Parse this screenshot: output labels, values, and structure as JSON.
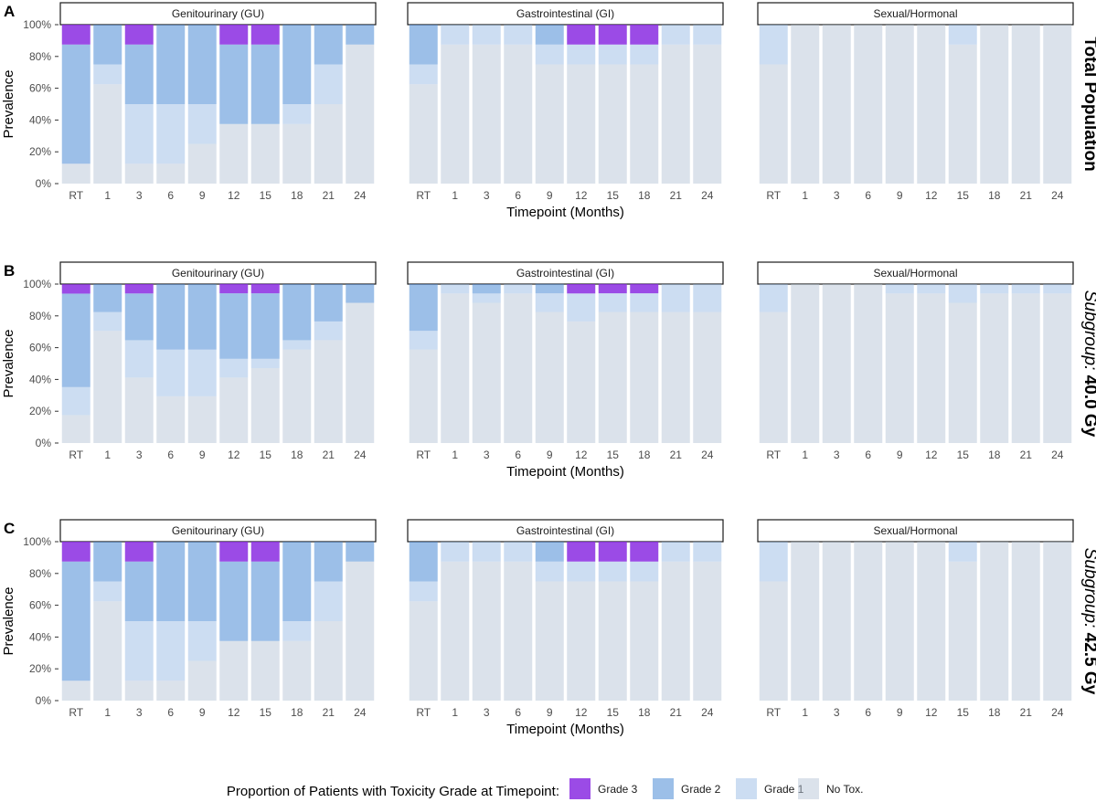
{
  "figure": {
    "facet_titles": [
      "Genitourinary (GU)",
      "Gastrointestinal (GI)",
      "Sexual/Hormonal"
    ],
    "y_ticks": [
      "0%",
      "20%",
      "40%",
      "60%",
      "80%",
      "100%"
    ],
    "ylabel": "Prevalence",
    "xlabel": "Timepoint (Months)",
    "legend": {
      "title": "Proportion of Patients with Toxicity Grade at Timepoint:",
      "items": [
        {
          "label": "Grade 3",
          "color": "#8a2be2"
        },
        {
          "label": "Grade 2",
          "color": "#4a8bd6"
        },
        {
          "label": "Grade 1",
          "color": "#8fb3e3"
        },
        {
          "label": "No Tox.",
          "color": "#b8c6d8"
        }
      ],
      "position": "bottom"
    },
    "rows": [
      {
        "tag": "A",
        "label_bold": "Total Population",
        "label_italic": ""
      },
      {
        "tag": "B",
        "label_italic": "Subgroup:",
        "label_bold": "40.0 Gy"
      },
      {
        "tag": "C",
        "label_italic": "Subgroup:",
        "label_bold": "42.5 Gy"
      }
    ]
  },
  "chart_data": {
    "type": "bar",
    "stacked": true,
    "ylim": [
      0,
      100
    ],
    "categories": [
      "RT",
      "1",
      "3",
      "6",
      "9",
      "12",
      "15",
      "18",
      "21",
      "24"
    ],
    "series_order": [
      "No Tox.",
      "Grade 1",
      "Grade 2",
      "Grade 3"
    ],
    "panels": [
      {
        "row": "Total Population",
        "facet": "Genitourinary (GU)",
        "series": [
          {
            "name": "No Tox.",
            "values": [
              12.5,
              62.5,
              12.5,
              12.5,
              25,
              37.5,
              37.5,
              37.5,
              50,
              87.5
            ]
          },
          {
            "name": "Grade 1",
            "values": [
              0,
              12.5,
              37.5,
              37.5,
              25,
              0,
              0,
              12.5,
              25,
              0
            ]
          },
          {
            "name": "Grade 2",
            "values": [
              75,
              25,
              37.5,
              50,
              50,
              50,
              50,
              50,
              25,
              12.5
            ]
          },
          {
            "name": "Grade 3",
            "values": [
              12.5,
              0,
              12.5,
              0,
              0,
              12.5,
              12.5,
              0,
              0,
              0
            ]
          }
        ]
      },
      {
        "row": "Total Population",
        "facet": "Gastrointestinal (GI)",
        "series": [
          {
            "name": "No Tox.",
            "values": [
              62.5,
              87.5,
              87.5,
              87.5,
              75,
              75,
              75,
              75,
              87.5,
              87.5
            ]
          },
          {
            "name": "Grade 1",
            "values": [
              12.5,
              12.5,
              12.5,
              12.5,
              12.5,
              12.5,
              12.5,
              12.5,
              12.5,
              12.5
            ]
          },
          {
            "name": "Grade 2",
            "values": [
              25,
              0,
              0,
              0,
              12.5,
              0,
              0,
              0,
              0,
              0
            ]
          },
          {
            "name": "Grade 3",
            "values": [
              0,
              0,
              0,
              0,
              0,
              12.5,
              12.5,
              12.5,
              0,
              0
            ]
          }
        ]
      },
      {
        "row": "Total Population",
        "facet": "Sexual/Hormonal",
        "series": [
          {
            "name": "No Tox.",
            "values": [
              75,
              100,
              100,
              100,
              100,
              100,
              87.5,
              100,
              100,
              100
            ]
          },
          {
            "name": "Grade 1",
            "values": [
              25,
              0,
              0,
              0,
              0,
              0,
              12.5,
              0,
              0,
              0
            ]
          },
          {
            "name": "Grade 2",
            "values": [
              0,
              0,
              0,
              0,
              0,
              0,
              0,
              0,
              0,
              0
            ]
          },
          {
            "name": "Grade 3",
            "values": [
              0,
              0,
              0,
              0,
              0,
              0,
              0,
              0,
              0,
              0
            ]
          }
        ]
      },
      {
        "row": "Subgroup: 40.0 Gy",
        "facet": "Genitourinary (GU)",
        "series": [
          {
            "name": "No Tox.",
            "values": [
              17.6,
              70.6,
              41.2,
              29.4,
              29.4,
              41.2,
              47.1,
              58.8,
              64.7,
              88.2
            ]
          },
          {
            "name": "Grade 1",
            "values": [
              17.6,
              11.8,
              23.5,
              29.4,
              29.4,
              11.8,
              5.9,
              5.9,
              11.8,
              0
            ]
          },
          {
            "name": "Grade 2",
            "values": [
              58.8,
              17.6,
              29.4,
              41.2,
              41.2,
              41.2,
              41.2,
              35.3,
              23.5,
              11.8
            ]
          },
          {
            "name": "Grade 3",
            "values": [
              5.9,
              0,
              5.9,
              0,
              0,
              5.9,
              5.9,
              0,
              0,
              0
            ]
          }
        ]
      },
      {
        "row": "Subgroup: 40.0 Gy",
        "facet": "Gastrointestinal (GI)",
        "series": [
          {
            "name": "No Tox.",
            "values": [
              58.8,
              94.1,
              88.2,
              94.1,
              82.4,
              76.5,
              82.4,
              82.4,
              82.4,
              82.4
            ]
          },
          {
            "name": "Grade 1",
            "values": [
              11.8,
              5.9,
              5.9,
              5.9,
              11.8,
              17.6,
              11.8,
              11.8,
              17.6,
              17.6
            ]
          },
          {
            "name": "Grade 2",
            "values": [
              29.4,
              0,
              5.9,
              0,
              5.9,
              0,
              0,
              0,
              0,
              0
            ]
          },
          {
            "name": "Grade 3",
            "values": [
              0,
              0,
              0,
              0,
              0,
              5.9,
              5.9,
              5.9,
              0,
              0
            ]
          }
        ]
      },
      {
        "row": "Subgroup: 40.0 Gy",
        "facet": "Sexual/Hormonal",
        "series": [
          {
            "name": "No Tox.",
            "values": [
              82.4,
              100,
              100,
              100,
              94.1,
              94.1,
              88.2,
              94.1,
              94.1,
              94.1
            ]
          },
          {
            "name": "Grade 1",
            "values": [
              17.6,
              0,
              0,
              0,
              5.9,
              5.9,
              11.8,
              5.9,
              5.9,
              5.9
            ]
          },
          {
            "name": "Grade 2",
            "values": [
              0,
              0,
              0,
              0,
              0,
              0,
              0,
              0,
              0,
              0
            ]
          },
          {
            "name": "Grade 3",
            "values": [
              0,
              0,
              0,
              0,
              0,
              0,
              0,
              0,
              0,
              0
            ]
          }
        ]
      },
      {
        "row": "Subgroup: 42.5 Gy",
        "facet": "Genitourinary (GU)",
        "series": [
          {
            "name": "No Tox.",
            "values": [
              12.5,
              62.5,
              12.5,
              12.5,
              25,
              37.5,
              37.5,
              37.5,
              50,
              87.5
            ]
          },
          {
            "name": "Grade 1",
            "values": [
              0,
              12.5,
              37.5,
              37.5,
              25,
              0,
              0,
              12.5,
              25,
              0
            ]
          },
          {
            "name": "Grade 2",
            "values": [
              75,
              25,
              37.5,
              50,
              50,
              50,
              50,
              50,
              25,
              12.5
            ]
          },
          {
            "name": "Grade 3",
            "values": [
              12.5,
              0,
              12.5,
              0,
              0,
              12.5,
              12.5,
              0,
              0,
              0
            ]
          }
        ]
      },
      {
        "row": "Subgroup: 42.5 Gy",
        "facet": "Gastrointestinal (GI)",
        "series": [
          {
            "name": "No Tox.",
            "values": [
              62.5,
              87.5,
              87.5,
              87.5,
              75,
              75,
              75,
              75,
              87.5,
              87.5
            ]
          },
          {
            "name": "Grade 1",
            "values": [
              12.5,
              12.5,
              12.5,
              12.5,
              12.5,
              12.5,
              12.5,
              12.5,
              12.5,
              12.5
            ]
          },
          {
            "name": "Grade 2",
            "values": [
              25,
              0,
              0,
              0,
              12.5,
              0,
              0,
              0,
              0,
              0
            ]
          },
          {
            "name": "Grade 3",
            "values": [
              0,
              0,
              0,
              0,
              0,
              12.5,
              12.5,
              12.5,
              0,
              0
            ]
          }
        ]
      },
      {
        "row": "Subgroup: 42.5 Gy",
        "facet": "Sexual/Hormonal",
        "series": [
          {
            "name": "No Tox.",
            "values": [
              75,
              100,
              100,
              100,
              100,
              100,
              87.5,
              100,
              100,
              100
            ]
          },
          {
            "name": "Grade 1",
            "values": [
              25,
              0,
              0,
              0,
              0,
              0,
              12.5,
              0,
              0,
              0
            ]
          },
          {
            "name": "Grade 2",
            "values": [
              0,
              0,
              0,
              0,
              0,
              0,
              0,
              0,
              0,
              0
            ]
          },
          {
            "name": "Grade 3",
            "values": [
              0,
              0,
              0,
              0,
              0,
              0,
              0,
              0,
              0,
              0
            ]
          }
        ]
      }
    ]
  }
}
